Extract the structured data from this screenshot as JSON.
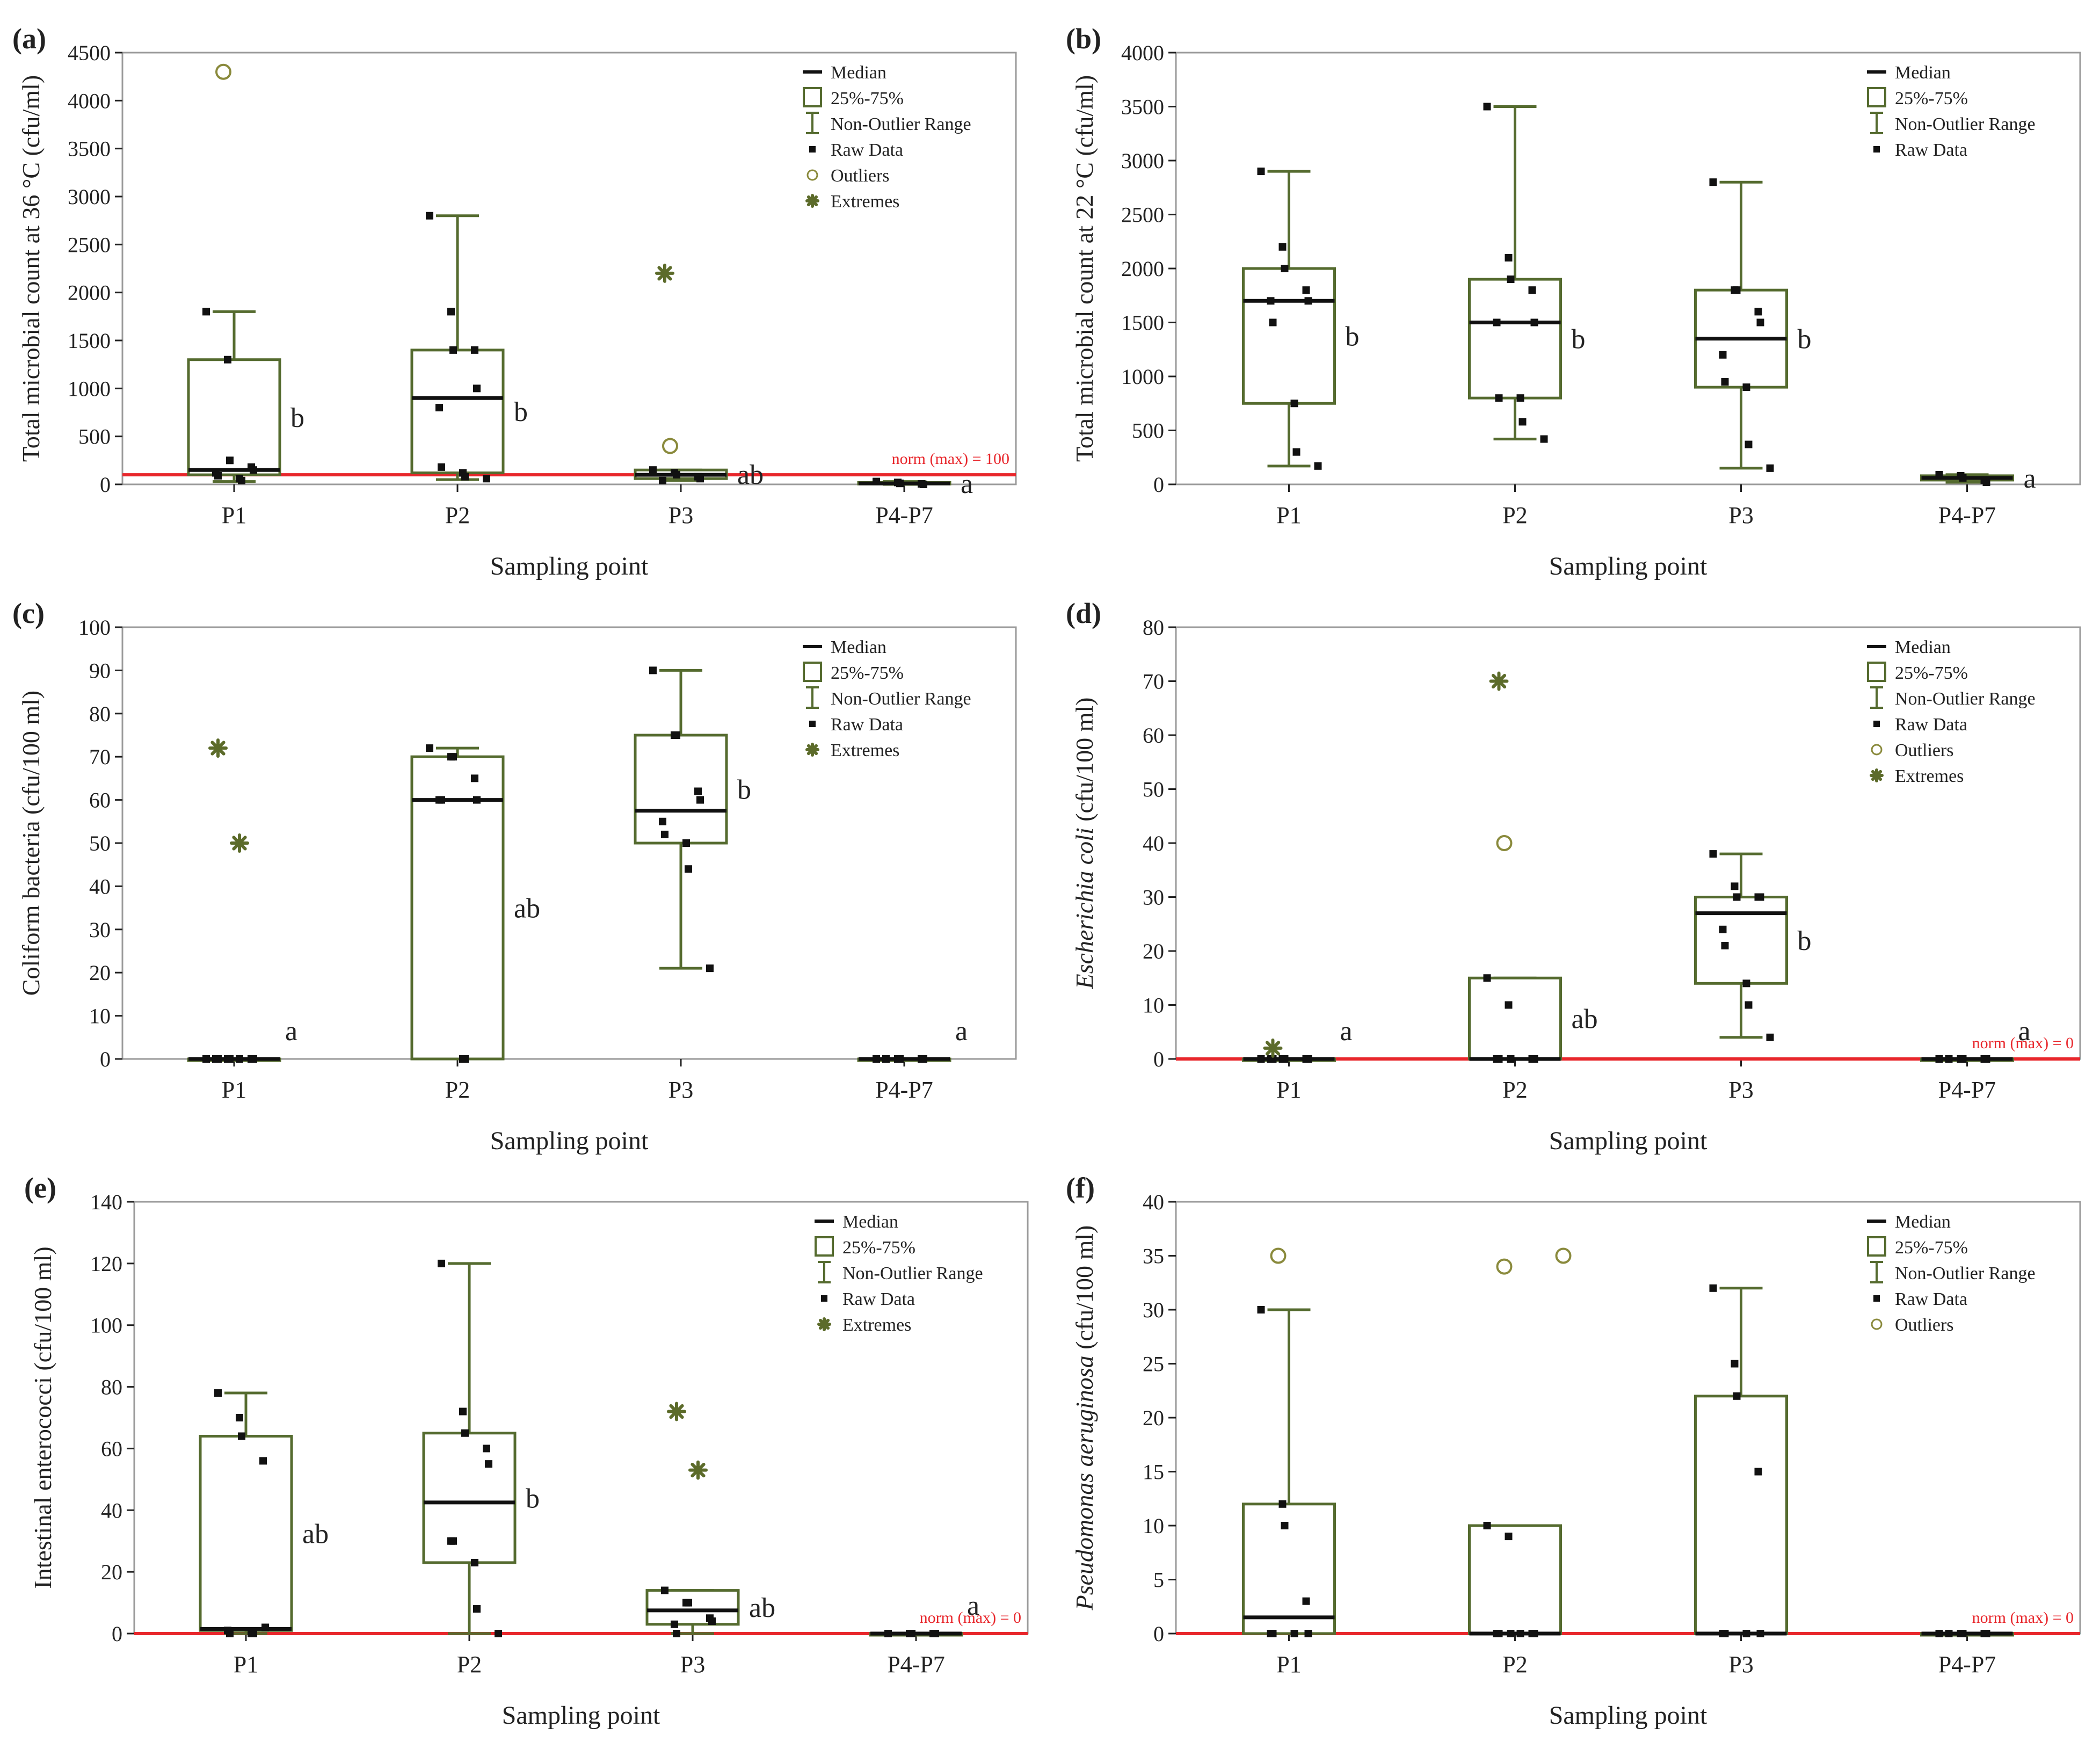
{
  "colors": {
    "box": "#556b2f",
    "norm": "#e8262b",
    "median": "#111111",
    "raw": "#111111",
    "outlier": "#8a8a3c",
    "extreme": "#5c6b2a",
    "axis": "#222222",
    "grid": "#9a9a9a"
  },
  "legend_labels": {
    "median": "Median",
    "iqr": "25%-75%",
    "range": "Non-Outlier Range",
    "raw": "Raw Data",
    "outliers": "Outliers",
    "extremes": "Extremes"
  },
  "chart_data": [
    {
      "panel": "(a)",
      "type": "box",
      "ylabel": "Total microbial count at 36 °C (cfu/ml)",
      "ylabel_italic": "",
      "xlabel": "Sampling point",
      "ylim": [
        0,
        4500
      ],
      "yticks": [
        0,
        500,
        1000,
        1500,
        2000,
        2500,
        3000,
        3500,
        4000,
        4500
      ],
      "categories": [
        "P1",
        "P2",
        "P3",
        "P4-P7"
      ],
      "norm": {
        "value": 100,
        "label": "norm (max) = 100"
      },
      "legend": [
        "median",
        "iqr",
        "range",
        "raw",
        "outliers",
        "extremes"
      ],
      "boxes": [
        {
          "q1": 100,
          "median": 150,
          "q3": 1300,
          "wmin": 30,
          "wmax": 1800,
          "letter": "b",
          "raw": [
            1800,
            1300,
            250,
            180,
            150,
            120,
            90,
            60,
            40
          ],
          "outliers": [
            4300
          ],
          "extremes": []
        },
        {
          "q1": 120,
          "median": 900,
          "q3": 1400,
          "wmin": 50,
          "wmax": 2800,
          "letter": "b",
          "raw": [
            2800,
            1800,
            1400,
            1400,
            1000,
            800,
            180,
            120,
            80,
            60
          ],
          "outliers": [],
          "extremes": []
        },
        {
          "q1": 60,
          "median": 100,
          "q3": 150,
          "wmin": 40,
          "wmax": 150,
          "letter": "ab",
          "raw": [
            150,
            120,
            100,
            80,
            60,
            40
          ],
          "outliers": [
            400
          ],
          "extremes": [
            2200
          ]
        },
        {
          "q1": 5,
          "median": 10,
          "q3": 20,
          "wmin": 0,
          "wmax": 30,
          "letter": "a",
          "raw": [
            30,
            20,
            10,
            5,
            0
          ],
          "outliers": [],
          "extremes": []
        }
      ]
    },
    {
      "panel": "(b)",
      "type": "box",
      "ylabel": "Total microbial count at 22 °C (cfu/ml)",
      "ylabel_italic": "",
      "xlabel": "Sampling point",
      "ylim": [
        0,
        4000
      ],
      "yticks": [
        0,
        500,
        1000,
        1500,
        2000,
        2500,
        3000,
        3500,
        4000
      ],
      "categories": [
        "P1",
        "P2",
        "P3",
        "P4-P7"
      ],
      "norm": null,
      "legend": [
        "median",
        "iqr",
        "range",
        "raw"
      ],
      "boxes": [
        {
          "q1": 750,
          "median": 1700,
          "q3": 2000,
          "wmin": 170,
          "wmax": 2900,
          "letter": "b",
          "raw": [
            2900,
            2200,
            2000,
            1800,
            1700,
            1700,
            1500,
            750,
            300,
            170
          ],
          "outliers": [],
          "extremes": []
        },
        {
          "q1": 800,
          "median": 1500,
          "q3": 1900,
          "wmin": 420,
          "wmax": 3500,
          "letter": "b",
          "raw": [
            3500,
            2100,
            1900,
            1800,
            1500,
            1500,
            800,
            800,
            580,
            420
          ],
          "outliers": [],
          "extremes": []
        },
        {
          "q1": 900,
          "median": 1350,
          "q3": 1800,
          "wmin": 150,
          "wmax": 2800,
          "letter": "b",
          "raw": [
            2800,
            1800,
            1800,
            1600,
            1500,
            1200,
            950,
            900,
            370,
            150
          ],
          "outliers": [],
          "extremes": []
        },
        {
          "q1": 40,
          "median": 60,
          "q3": 80,
          "wmin": 20,
          "wmax": 90,
          "letter": "a",
          "raw": [
            90,
            80,
            60,
            40,
            20
          ],
          "outliers": [],
          "extremes": []
        }
      ]
    },
    {
      "panel": "(c)",
      "type": "box",
      "ylabel": "Coliform bacteria (cfu/100 ml)",
      "ylabel_italic": "",
      "xlabel": "Sampling point",
      "ylim": [
        0,
        100
      ],
      "yticks": [
        0,
        10,
        20,
        30,
        40,
        50,
        60,
        70,
        80,
        90,
        100
      ],
      "categories": [
        "P1",
        "P2",
        "P3",
        "P4-P7"
      ],
      "norm": null,
      "legend": [
        "median",
        "iqr",
        "range",
        "raw",
        "extremes"
      ],
      "boxes": [
        {
          "q1": 0,
          "median": 0,
          "q3": 0,
          "wmin": 0,
          "wmax": 0,
          "letter": "a",
          "raw": [
            0,
            0,
            0,
            0,
            0,
            0,
            0,
            0
          ],
          "outliers": [],
          "extremes": [
            72,
            50
          ]
        },
        {
          "q1": 0,
          "median": 60,
          "q3": 70,
          "wmin": 0,
          "wmax": 72,
          "letter": "ab",
          "raw": [
            72,
            70,
            70,
            65,
            60,
            60,
            60,
            0,
            0
          ],
          "outliers": [],
          "extremes": []
        },
        {
          "q1": 50,
          "median": 57.5,
          "q3": 75,
          "wmin": 21,
          "wmax": 90,
          "letter": "b",
          "raw": [
            90,
            75,
            75,
            62,
            60,
            55,
            52,
            50,
            44,
            21
          ],
          "outliers": [],
          "extremes": []
        },
        {
          "q1": 0,
          "median": 0,
          "q3": 0,
          "wmin": 0,
          "wmax": 0,
          "letter": "a",
          "raw": [
            0,
            0,
            0,
            0,
            0,
            0
          ],
          "outliers": [],
          "extremes": []
        }
      ]
    },
    {
      "panel": "(d)",
      "type": "box",
      "ylabel": "(cfu/100 ml)",
      "ylabel_italic": "Escherichia coli",
      "xlabel": "Sampling point",
      "ylim": [
        0,
        80
      ],
      "yticks": [
        0,
        10,
        20,
        30,
        40,
        50,
        60,
        70,
        80
      ],
      "categories": [
        "P1",
        "P2",
        "P3",
        "P4-P7"
      ],
      "norm": {
        "value": 0,
        "label": "norm (max) = 0"
      },
      "legend": [
        "median",
        "iqr",
        "range",
        "raw",
        "outliers",
        "extremes"
      ],
      "boxes": [
        {
          "q1": 0,
          "median": 0,
          "q3": 0,
          "wmin": 0,
          "wmax": 0,
          "letter": "a",
          "raw": [
            0,
            0,
            0,
            0,
            0,
            0,
            0
          ],
          "outliers": [],
          "extremes": [
            2
          ]
        },
        {
          "q1": 0,
          "median": 0,
          "q3": 15,
          "wmin": 0,
          "wmax": 15,
          "letter": "ab",
          "raw": [
            15,
            10,
            0,
            0,
            0,
            0,
            0
          ],
          "outliers": [
            40
          ],
          "extremes": [
            70
          ]
        },
        {
          "q1": 14,
          "median": 27,
          "q3": 30,
          "wmin": 4,
          "wmax": 38,
          "letter": "b",
          "raw": [
            38,
            32,
            30,
            30,
            30,
            24,
            21,
            14,
            10,
            4
          ],
          "outliers": [],
          "extremes": []
        },
        {
          "q1": 0,
          "median": 0,
          "q3": 0,
          "wmin": 0,
          "wmax": 0,
          "letter": "a",
          "raw": [
            0,
            0,
            0,
            0,
            0,
            0
          ],
          "outliers": [],
          "extremes": []
        }
      ]
    },
    {
      "panel": "(e)",
      "type": "box",
      "ylabel": "Intestinal enterococci (cfu/100 ml)",
      "ylabel_italic": "",
      "xlabel": "Sampling point",
      "ylim": [
        0,
        140
      ],
      "yticks": [
        0,
        20,
        40,
        60,
        80,
        100,
        120,
        140
      ],
      "categories": [
        "P1",
        "P2",
        "P3",
        "P4-P7"
      ],
      "norm": {
        "value": 0,
        "label": "norm (max) = 0"
      },
      "legend": [
        "median",
        "iqr",
        "range",
        "raw",
        "extremes"
      ],
      "boxes": [
        {
          "q1": 1,
          "median": 1.5,
          "q3": 64,
          "wmin": 0,
          "wmax": 78,
          "letter": "ab",
          "raw": [
            78,
            70,
            64,
            56,
            2,
            1,
            0,
            0,
            0
          ],
          "outliers": [],
          "extremes": []
        },
        {
          "q1": 23,
          "median": 42.5,
          "q3": 65,
          "wmin": 0,
          "wmax": 120,
          "letter": "b",
          "raw": [
            120,
            72,
            65,
            60,
            55,
            30,
            30,
            23,
            8,
            0
          ],
          "outliers": [],
          "extremes": []
        },
        {
          "q1": 3,
          "median": 7.5,
          "q3": 14,
          "wmin": 0,
          "wmax": 14,
          "letter": "ab",
          "raw": [
            14,
            10,
            10,
            5,
            4,
            3,
            0
          ],
          "outliers": [],
          "extremes": [
            72,
            53
          ]
        },
        {
          "q1": 0,
          "median": 0,
          "q3": 0,
          "wmin": 0,
          "wmax": 0,
          "letter": "a",
          "raw": [
            0,
            0,
            0,
            0,
            0
          ],
          "outliers": [],
          "extremes": []
        }
      ]
    },
    {
      "panel": "(f)",
      "type": "box",
      "ylabel": "(cfu/100 ml)",
      "ylabel_italic": "Pseudomonas aeruginosa",
      "xlabel": "Sampling point",
      "ylim": [
        0,
        40
      ],
      "yticks": [
        0,
        5,
        10,
        15,
        20,
        25,
        30,
        35,
        40
      ],
      "categories": [
        "P1",
        "P2",
        "P3",
        "P4-P7"
      ],
      "norm": {
        "value": 0,
        "label": "norm (max) = 0"
      },
      "legend": [
        "median",
        "iqr",
        "range",
        "raw",
        "outliers"
      ],
      "boxes": [
        {
          "q1": 0,
          "median": 1.5,
          "q3": 12,
          "wmin": 0,
          "wmax": 30,
          "letter": "",
          "raw": [
            30,
            12,
            10,
            3,
            0,
            0,
            0,
            0
          ],
          "outliers": [
            35
          ],
          "extremes": []
        },
        {
          "q1": 0,
          "median": 0,
          "q3": 10,
          "wmin": 0,
          "wmax": 10,
          "letter": "",
          "raw": [
            10,
            9,
            0,
            0,
            0,
            0,
            0,
            0
          ],
          "outliers": [
            34,
            35
          ],
          "extremes": []
        },
        {
          "q1": 0,
          "median": 0,
          "q3": 22,
          "wmin": 0,
          "wmax": 32,
          "letter": "",
          "raw": [
            32,
            25,
            22,
            15,
            0,
            0,
            0,
            0
          ],
          "outliers": [],
          "extremes": []
        },
        {
          "q1": 0,
          "median": 0,
          "q3": 0,
          "wmin": 0,
          "wmax": 0,
          "letter": "",
          "raw": [
            0,
            0,
            0,
            0,
            0,
            0
          ],
          "outliers": [],
          "extremes": []
        }
      ]
    }
  ]
}
